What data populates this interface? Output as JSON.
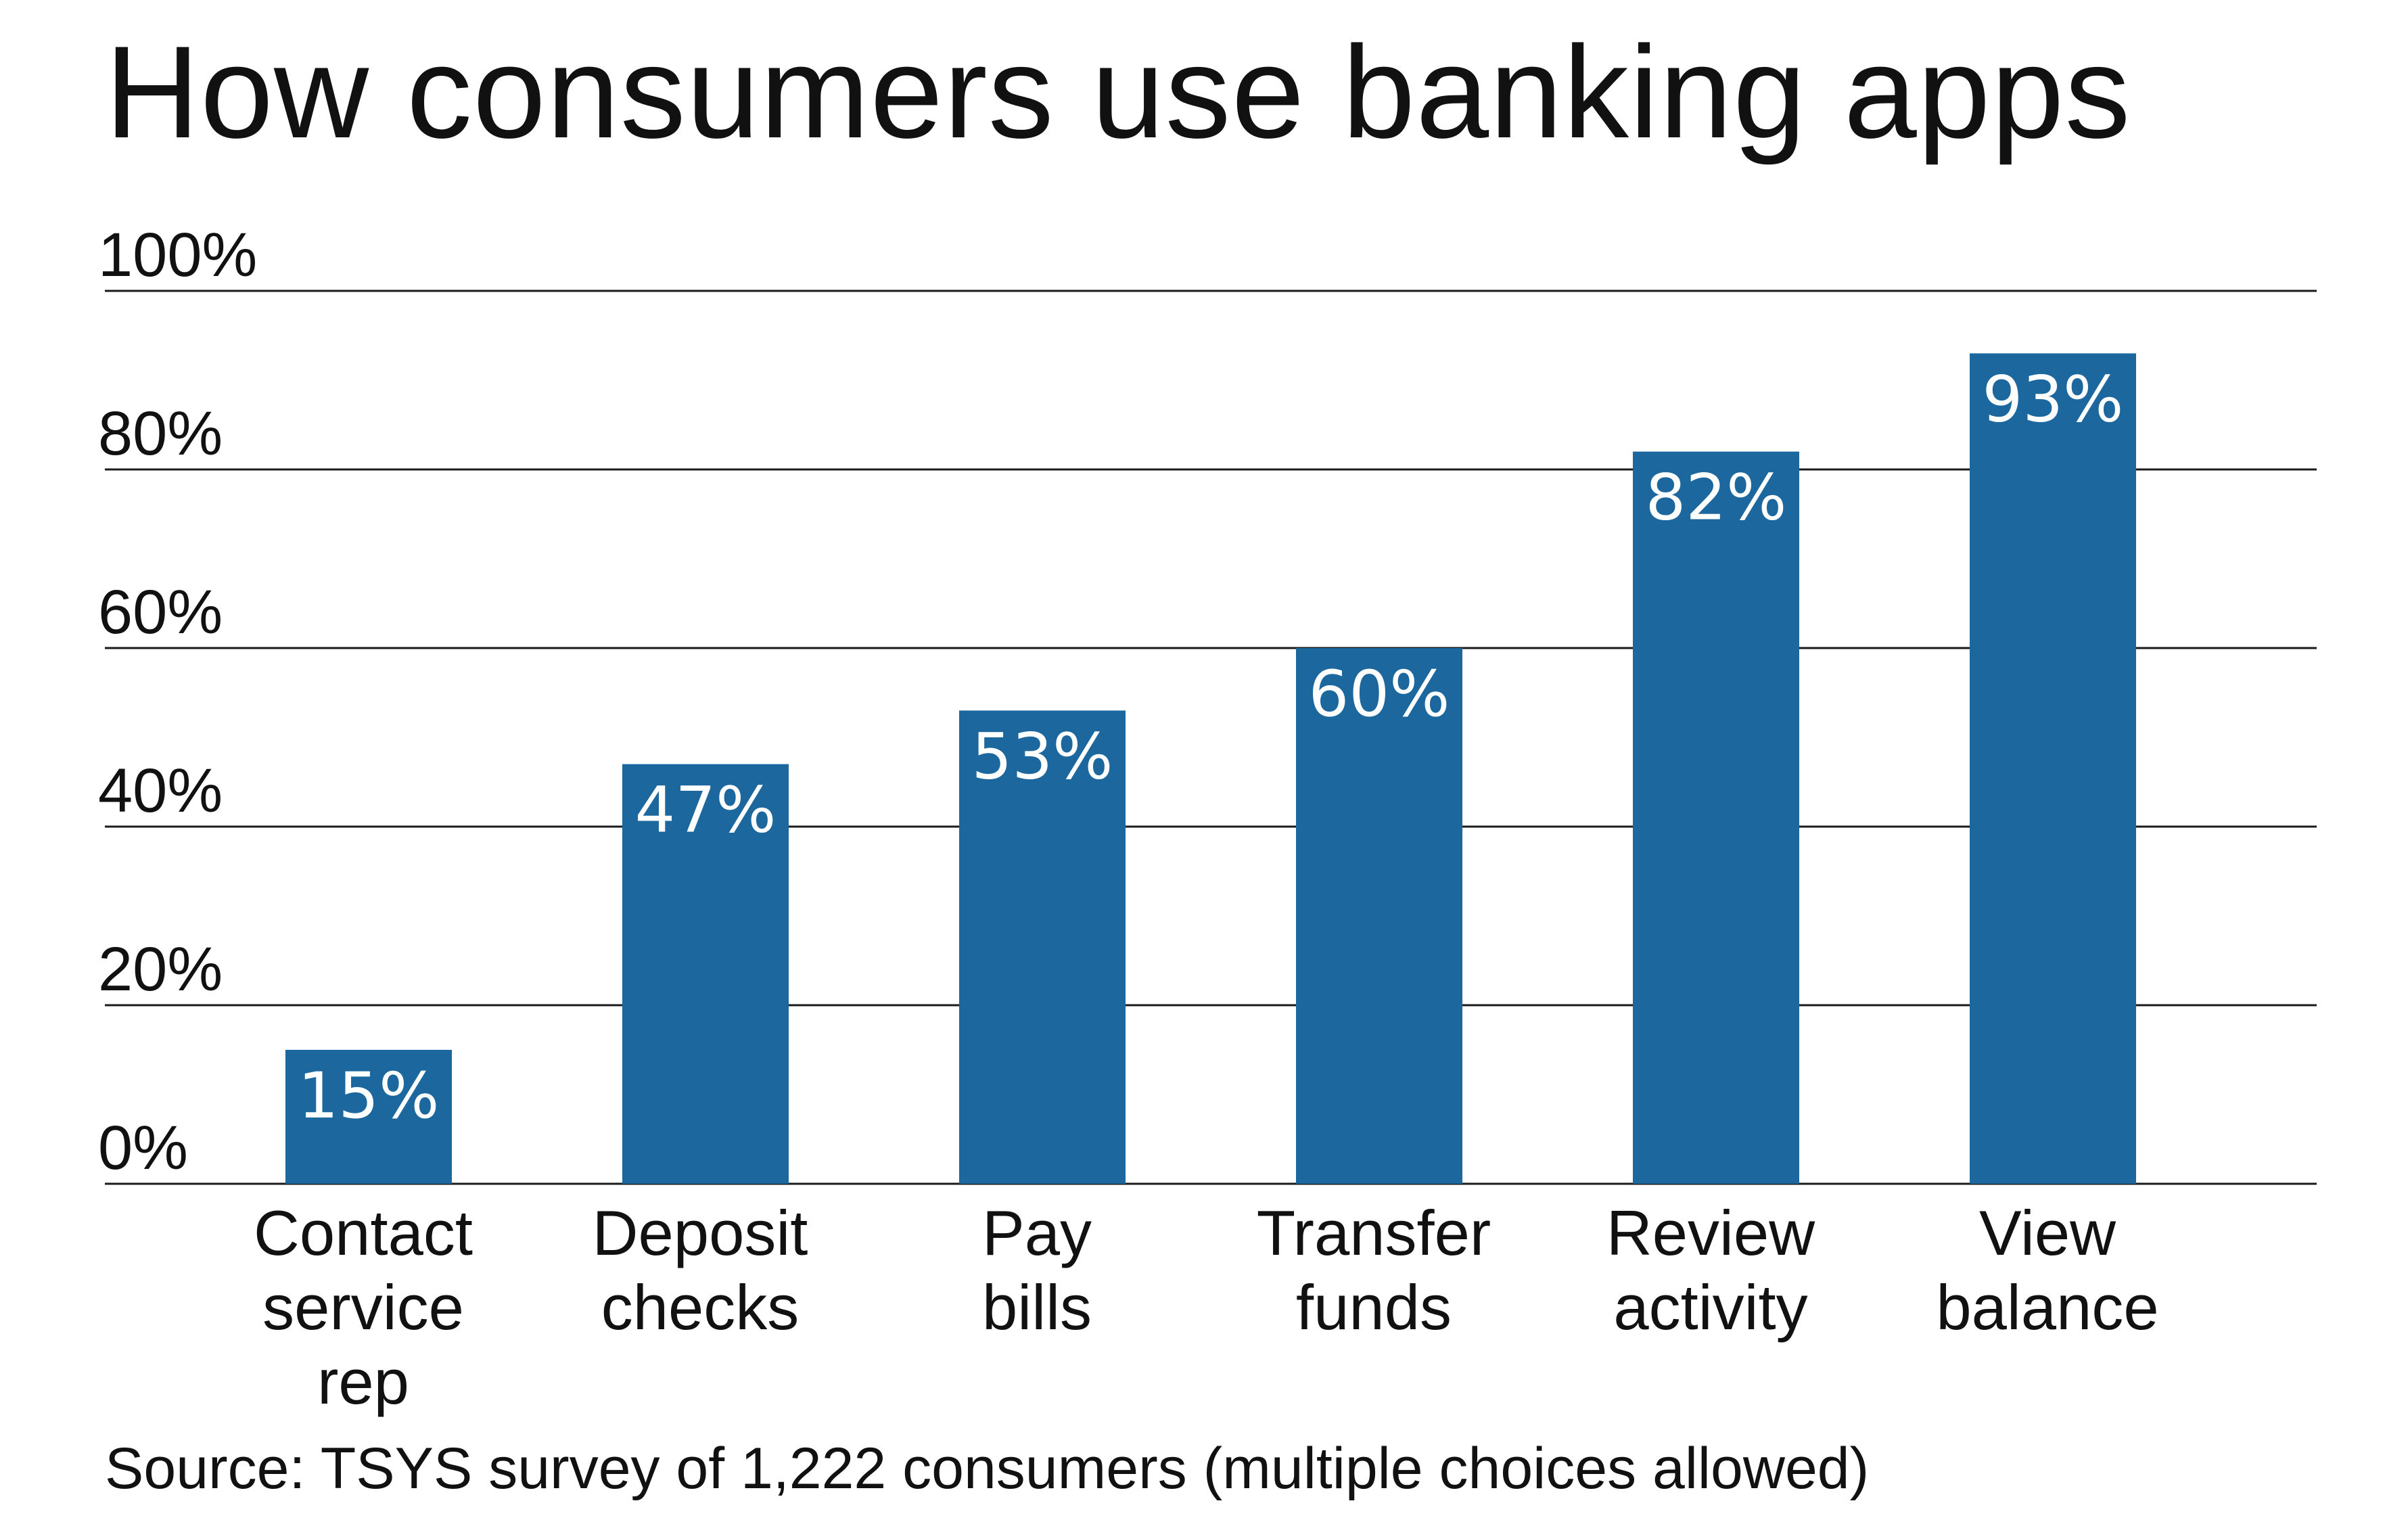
{
  "chart_data": {
    "type": "bar",
    "title": "How consumers use banking apps",
    "source": "Source: TSYS survey of 1,222 consumers (multiple choices allowed)",
    "categories": [
      [
        "Contact",
        "service",
        "rep"
      ],
      [
        "Deposit",
        "checks"
      ],
      [
        "Pay",
        "bills"
      ],
      [
        "Transfer",
        "funds"
      ],
      [
        "Review",
        "activity"
      ],
      [
        "View",
        "balance"
      ]
    ],
    "values": [
      15,
      47,
      53,
      60,
      82,
      93
    ],
    "data_labels": [
      "15%",
      "47%",
      "53%",
      "60%",
      "82%",
      "93%"
    ],
    "ylim": [
      0,
      100
    ],
    "yticks": [
      0,
      20,
      40,
      60,
      80,
      100
    ],
    "ytick_labels": [
      "0%",
      "20%",
      "40%",
      "60%",
      "80%",
      "100%"
    ],
    "xlabel": "",
    "ylabel": "",
    "grid": true,
    "legend": "none",
    "bar_color": "#1c689e"
  }
}
